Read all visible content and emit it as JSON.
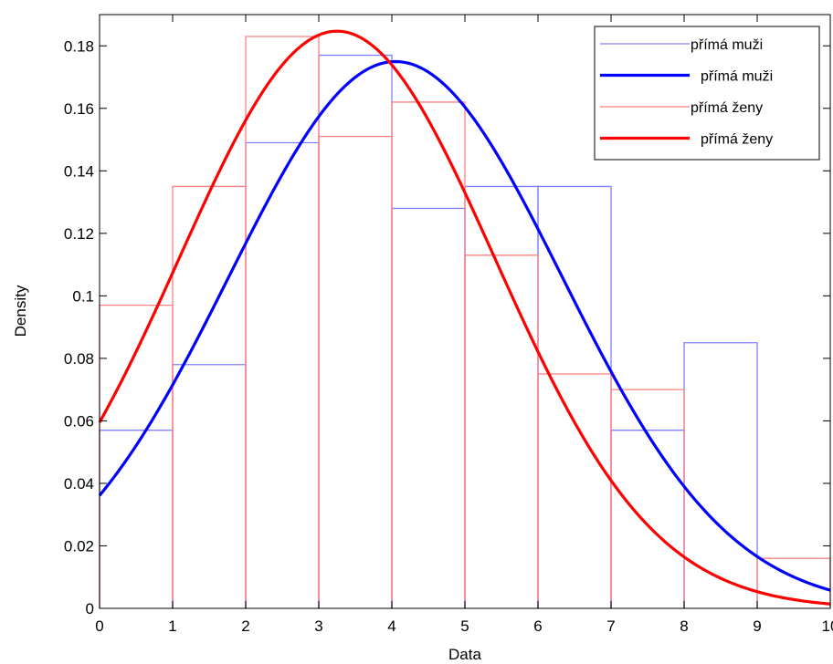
{
  "chart_data": {
    "type": "line",
    "title": "",
    "xlabel": "Data",
    "ylabel": "Density",
    "xlim": [
      0,
      10
    ],
    "ylim": [
      0,
      0.19
    ],
    "x_ticks": [
      0,
      1,
      2,
      3,
      4,
      5,
      6,
      7,
      8,
      9,
      10
    ],
    "x_tick_labels": [
      "0",
      "1",
      "2",
      "3",
      "4",
      "5",
      "6",
      "7",
      "8",
      "9",
      "10"
    ],
    "y_ticks": [
      0,
      0.02,
      0.04,
      0.06,
      0.08,
      0.1,
      0.12,
      0.14,
      0.16,
      0.18
    ],
    "y_tick_labels": [
      "0",
      "0.02",
      "0.04",
      "0.06",
      "0.08",
      "0.1",
      "0.12",
      "0.14",
      "0.16",
      "0.18"
    ],
    "grid": false,
    "legend_position": "top-right",
    "histograms": [
      {
        "name": "přímá muži",
        "color": "#8080ff",
        "bin_edges": [
          0,
          1,
          2,
          3,
          4,
          5,
          6,
          7,
          8,
          9,
          10
        ],
        "values": [
          0.057,
          0.078,
          0.149,
          0.177,
          0.128,
          0.135,
          0.135,
          0.057,
          0.085,
          0.0
        ]
      },
      {
        "name": "přímá ženy",
        "color": "#ff8080",
        "bin_edges": [
          0,
          1,
          2,
          3,
          4,
          5,
          6,
          7,
          8,
          9,
          10
        ],
        "values": [
          0.097,
          0.135,
          0.183,
          0.151,
          0.162,
          0.113,
          0.075,
          0.07,
          0.0,
          0.016
        ]
      }
    ],
    "series": [
      {
        "name": "přímá muži",
        "color": "#0000ff",
        "distribution": "normal",
        "mean": 4.05,
        "sd": 2.28,
        "x": [
          0,
          1,
          2,
          3,
          4,
          5,
          6,
          7,
          8,
          9,
          10
        ],
        "values": [
          0.036,
          0.072,
          0.117,
          0.157,
          0.175,
          0.16,
          0.121,
          0.076,
          0.039,
          0.017,
          0.006
        ]
      },
      {
        "name": "přímá ženy",
        "color": "#ff0000",
        "distribution": "normal",
        "mean": 3.25,
        "sd": 2.16,
        "x": [
          0,
          1,
          2,
          3,
          4,
          5,
          6,
          7,
          8,
          9,
          10
        ],
        "values": [
          0.057,
          0.107,
          0.156,
          0.183,
          0.174,
          0.133,
          0.083,
          0.043,
          0.017,
          0.006,
          0.002
        ]
      }
    ],
    "legend": [
      {
        "label": "přímá muži",
        "color": "#8080ff",
        "style": "thin"
      },
      {
        "label": "přímá muži",
        "color": "#0000ff",
        "style": "thick"
      },
      {
        "label": "přímá ženy",
        "color": "#ff8080",
        "style": "thin"
      },
      {
        "label": "přímá ženy",
        "color": "#ff0000",
        "style": "thick"
      }
    ]
  }
}
